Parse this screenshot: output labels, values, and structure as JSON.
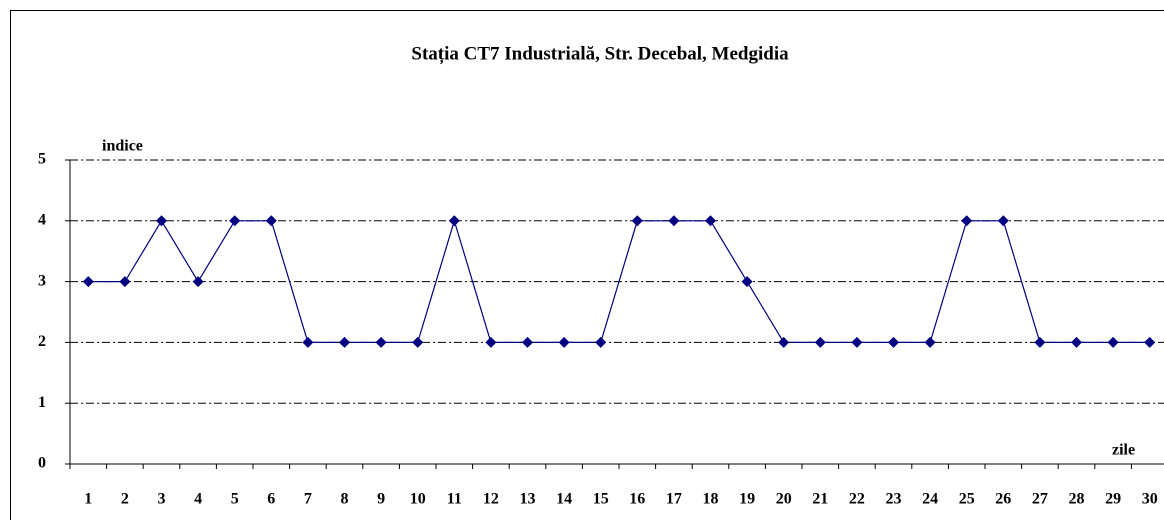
{
  "chart_data": {
    "type": "line",
    "title": "Stația CT7 Industrială, Str. Decebal, Medgidia",
    "ylabel": "indice",
    "xlabel": "zile",
    "categories": [
      "1",
      "2",
      "3",
      "4",
      "5",
      "6",
      "7",
      "8",
      "9",
      "10",
      "11",
      "12",
      "13",
      "14",
      "15",
      "16",
      "17",
      "18",
      "19",
      "20",
      "21",
      "22",
      "23",
      "24",
      "25",
      "26",
      "27",
      "28",
      "29",
      "30"
    ],
    "series": [
      {
        "color": "#000080",
        "values": [
          3,
          3,
          4,
          3,
          4,
          4,
          2,
          2,
          2,
          2,
          4,
          2,
          2,
          2,
          2,
          4,
          4,
          4,
          3,
          2,
          2,
          2,
          2,
          2,
          4,
          4,
          2,
          2,
          2,
          2
        ]
      }
    ],
    "ylim": [
      0,
      5
    ],
    "yticks": [
      0,
      1,
      2,
      3,
      4,
      5
    ],
    "grid": true
  }
}
